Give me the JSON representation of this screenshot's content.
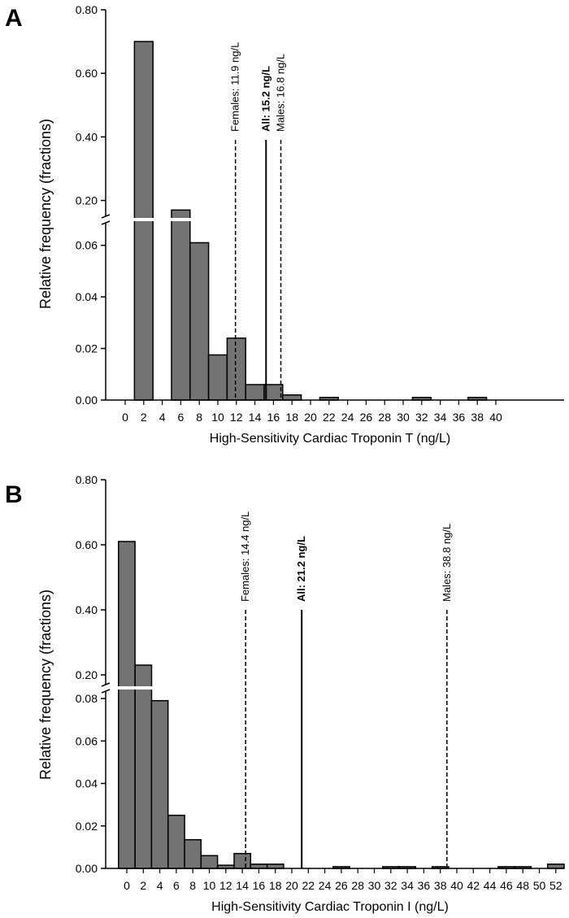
{
  "chart_data": [
    {
      "type": "bar",
      "panel_label": "A",
      "xlabel": "High-Sensitivity Cardiac Troponin T (ng/L)",
      "ylabel": "Relative frequency (fractions)",
      "x_ticks": [
        "0",
        "2",
        "4",
        "6",
        "8",
        "10",
        "12",
        "14",
        "16",
        "18",
        "20",
        "22",
        "24",
        "26",
        "28",
        "30",
        "32",
        "34",
        "36",
        "38",
        "40"
      ],
      "y_ticks_lower": [
        "0.00",
        "0.02",
        "0.04",
        "0.06"
      ],
      "y_ticks_upper": [
        "0.20",
        "0.40",
        "0.60",
        "0.80"
      ],
      "ylim_lower": [
        0,
        0.07
      ],
      "ylim_upper": [
        0.14,
        0.8
      ],
      "axis_break": true,
      "bin_width": 2,
      "bins": [
        {
          "x": 2,
          "value": 0.7
        },
        {
          "x": 6,
          "value": 0.17
        },
        {
          "x": 8,
          "value": 0.061
        },
        {
          "x": 10,
          "value": 0.0175
        },
        {
          "x": 12,
          "value": 0.024
        },
        {
          "x": 14,
          "value": 0.006
        },
        {
          "x": 16,
          "value": 0.006
        },
        {
          "x": 18,
          "value": 0.002
        },
        {
          "x": 22,
          "value": 0.001
        },
        {
          "x": 32,
          "value": 0.001
        },
        {
          "x": 38,
          "value": 0.001
        }
      ],
      "reference_lines": [
        {
          "x": 11.9,
          "label": "Females: 11.9 ng/L",
          "style": "dashed",
          "bold": false
        },
        {
          "x": 15.2,
          "label": "All: 15.2 ng/L",
          "style": "solid",
          "bold": true
        },
        {
          "x": 16.8,
          "label": "Males: 16.8 ng/L",
          "style": "dashed",
          "bold": false
        }
      ]
    },
    {
      "type": "bar",
      "panel_label": "B",
      "xlabel": "High-Sensitivity Cardiac Troponin I (ng/L)",
      "ylabel": "Relative frequency (fractions)",
      "x_ticks": [
        "0",
        "2",
        "4",
        "6",
        "8",
        "10",
        "12",
        "14",
        "16",
        "18",
        "20",
        "22",
        "24",
        "26",
        "28",
        "30",
        "32",
        "34",
        "36",
        "38",
        "40",
        "42",
        "44",
        "46",
        "48",
        "50",
        "52"
      ],
      "y_ticks_lower": [
        "0.00",
        "0.02",
        "0.04",
        "0.06",
        "0.08"
      ],
      "y_ticks_upper": [
        "0.20",
        "0.40",
        "0.60",
        "0.80"
      ],
      "ylim_lower": [
        0,
        0.085
      ],
      "ylim_upper": [
        0.16,
        0.8
      ],
      "axis_break": true,
      "bin_width": 2,
      "bins": [
        {
          "x": 0,
          "value": 0.61
        },
        {
          "x": 2,
          "value": 0.23
        },
        {
          "x": 4,
          "value": 0.079
        },
        {
          "x": 6,
          "value": 0.025
        },
        {
          "x": 8,
          "value": 0.0135
        },
        {
          "x": 10,
          "value": 0.006
        },
        {
          "x": 12,
          "value": 0.0015
        },
        {
          "x": 14,
          "value": 0.007
        },
        {
          "x": 16,
          "value": 0.002
        },
        {
          "x": 18,
          "value": 0.002
        },
        {
          "x": 26,
          "value": 0.0008
        },
        {
          "x": 32,
          "value": 0.0008
        },
        {
          "x": 34,
          "value": 0.0008
        },
        {
          "x": 38,
          "value": 0.0008
        },
        {
          "x": 46,
          "value": 0.0008
        },
        {
          "x": 48,
          "value": 0.0008
        },
        {
          "x": 52,
          "value": 0.002
        }
      ],
      "reference_lines": [
        {
          "x": 14.4,
          "label": "Females: 14.4 ng/L",
          "style": "dashed",
          "bold": false
        },
        {
          "x": 21.2,
          "label": "All: 21.2 ng/L",
          "style": "solid",
          "bold": true
        },
        {
          "x": 38.8,
          "label": "Males: 38.8 ng/L",
          "style": "dashed",
          "bold": false
        }
      ]
    }
  ],
  "colors": {
    "bar_fill": "#737373",
    "bar_stroke": "#000000",
    "axis": "#000000",
    "break_gap": "#ffffff"
  }
}
